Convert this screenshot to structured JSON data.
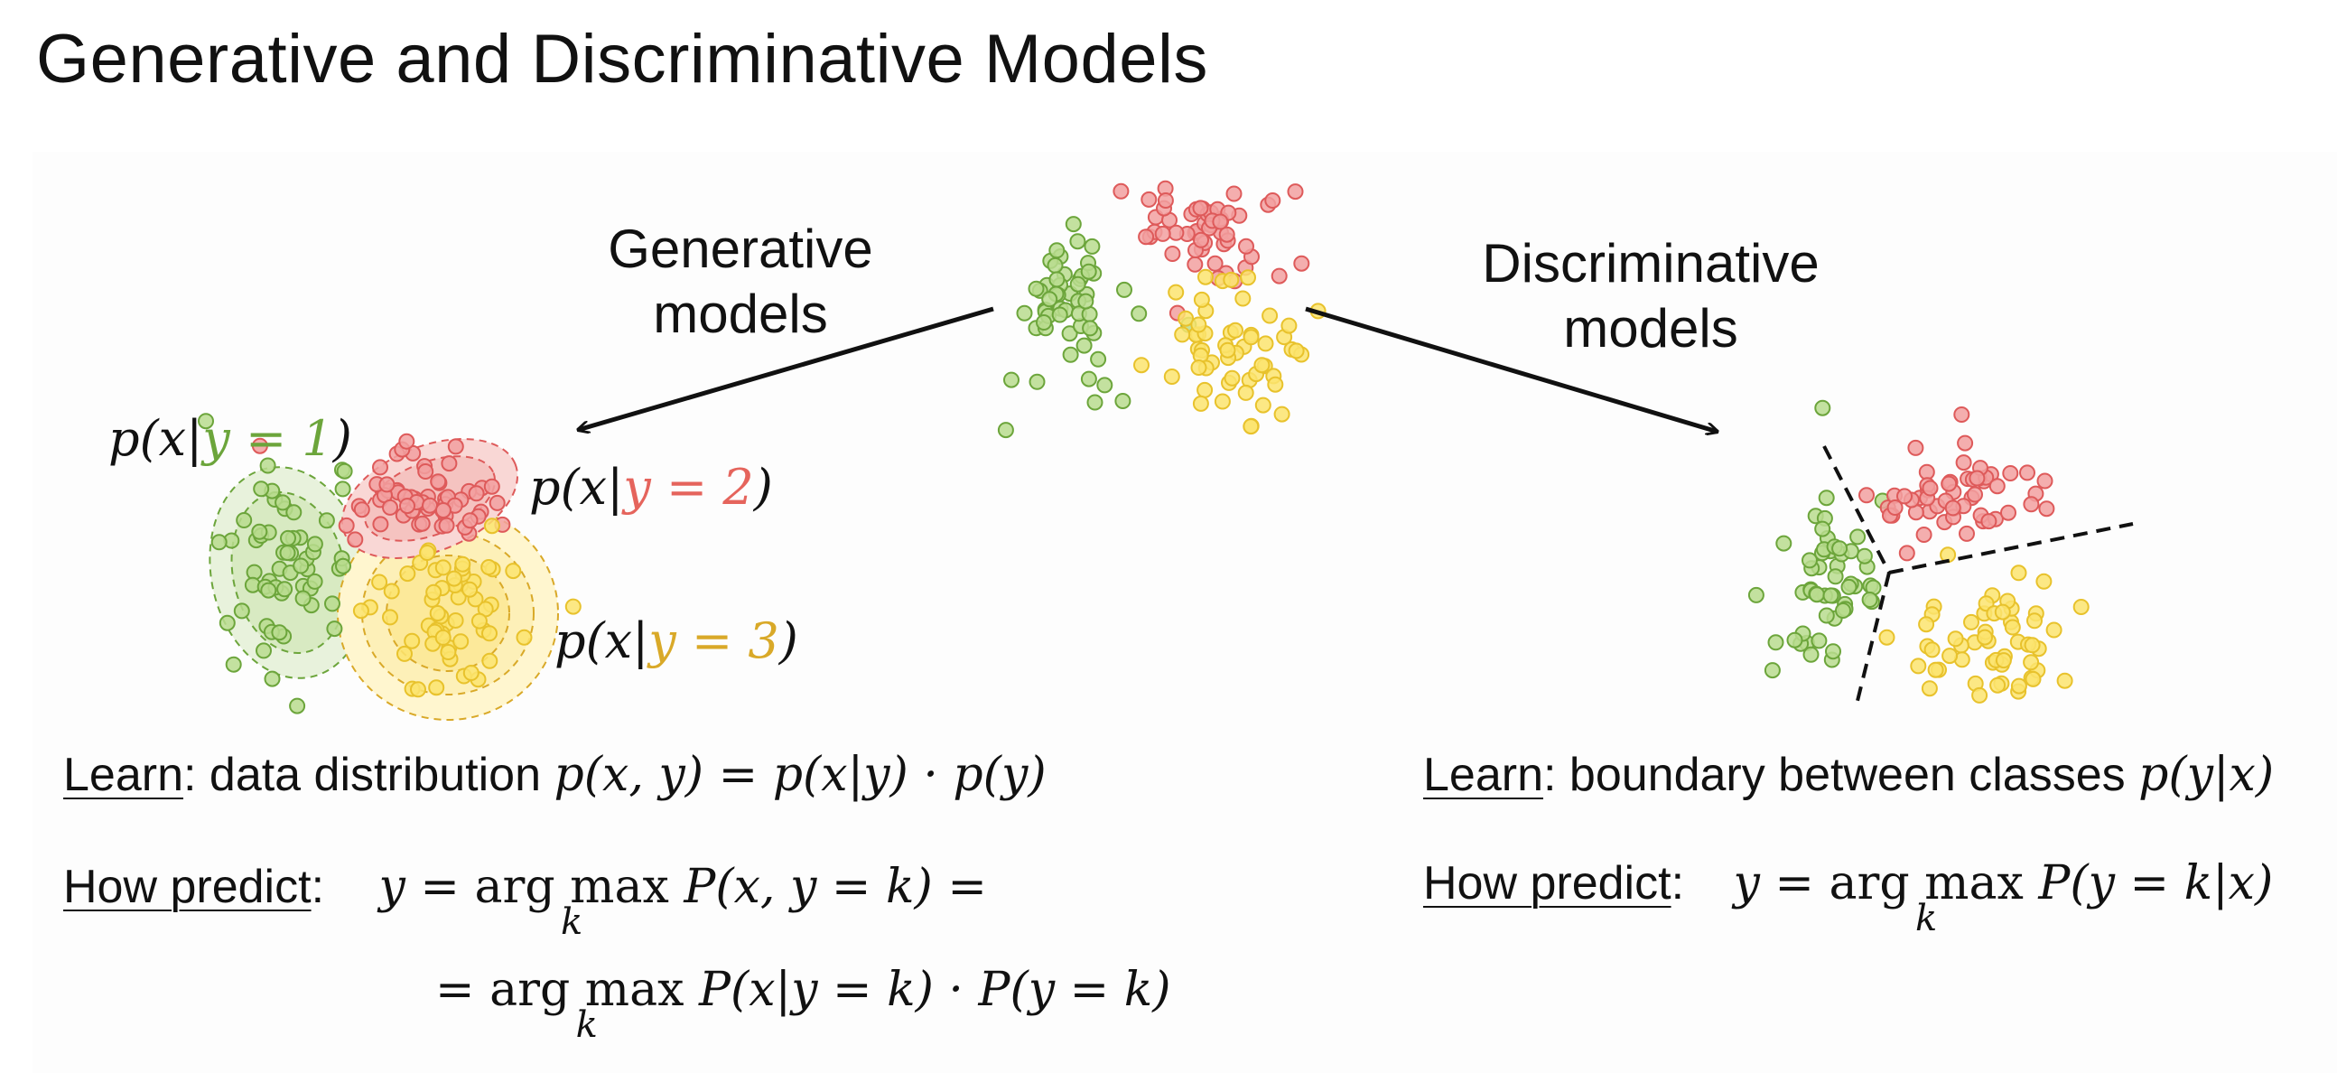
{
  "title": "Generative and Discriminative Models",
  "labels": {
    "generative_l1": "Generative",
    "generative_l2": "models",
    "discriminative_l1": "Discriminative",
    "discriminative_l2": "models"
  },
  "conditionals": {
    "prefix": "p(x|",
    "suffix": ")",
    "c1": "y = 1",
    "c2": "y = 2",
    "c3": "y = 3"
  },
  "generative": {
    "learn_word": "Learn",
    "learn_text": ": data distribution ",
    "learn_formula": "p(x, y) = p(x|y) · p(y)",
    "predict_word": "How predict",
    "predict_colon": ":",
    "line1_pre": "y = ",
    "argmax": "arg max",
    "argmax_sub": "k",
    "line1_post": " P(x, y = k) =",
    "line2_pre": "= ",
    "line2_post": " P(x|y = k) · P(y = k)"
  },
  "discriminative": {
    "learn_word": "Learn",
    "learn_text": ": boundary between classes ",
    "learn_formula": "p(y|x)",
    "predict_word": "How predict",
    "predict_colon": ":",
    "line_pre": "y = ",
    "argmax": "arg max",
    "argmax_sub": "k",
    "line_post": " P(y = k|x)"
  },
  "colors": {
    "green_fill": "#b9dc8e",
    "green_stroke": "#6ca53b",
    "red_fill": "#f2a0a0",
    "red_stroke": "#de5a5a",
    "yellow_fill": "#fbe46e",
    "yellow_stroke": "#e8c22c"
  }
}
